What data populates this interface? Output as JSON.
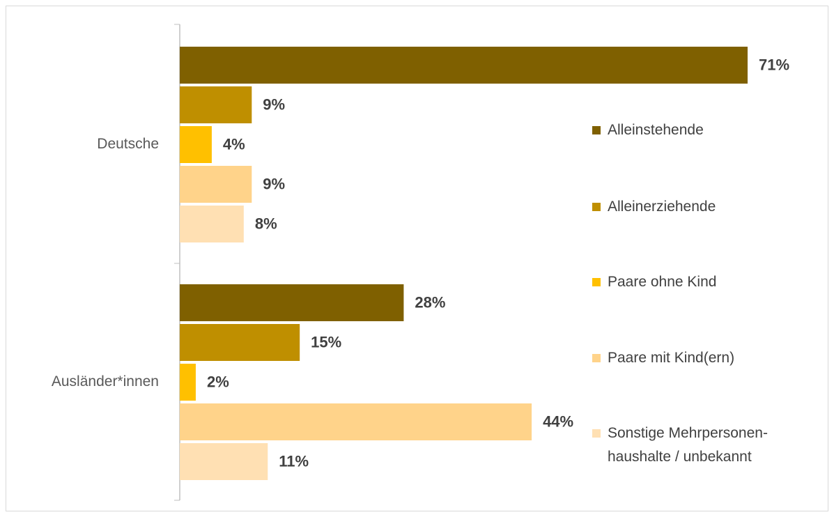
{
  "chart_data": {
    "type": "bar",
    "orientation": "horizontal",
    "categories": [
      "Deutsche",
      "Ausländer*innen"
    ],
    "series": [
      {
        "name": "Alleinstehende",
        "color": "#7f6000",
        "values": [
          71,
          28
        ],
        "value_labels": [
          "71%",
          "28%"
        ]
      },
      {
        "name": "Alleinerziehende",
        "color": "#bf8f00",
        "values": [
          9,
          15
        ],
        "value_labels": [
          "9%",
          "15%"
        ]
      },
      {
        "name": "Paare ohne Kind",
        "color": "#ffc000",
        "values": [
          4,
          2
        ],
        "value_labels": [
          "4%",
          "2%"
        ]
      },
      {
        "name": "Paare mit Kind(ern)",
        "color": "#ffd38a",
        "values": [
          9,
          44
        ],
        "value_labels": [
          "9%",
          "44%"
        ]
      },
      {
        "name": "Sonstige Mehrpersonen-haushalte / unbekannt",
        "color": "#ffe0b3",
        "values": [
          8,
          11
        ],
        "value_labels": [
          "8%",
          "11%"
        ]
      }
    ],
    "legend": "right"
  }
}
